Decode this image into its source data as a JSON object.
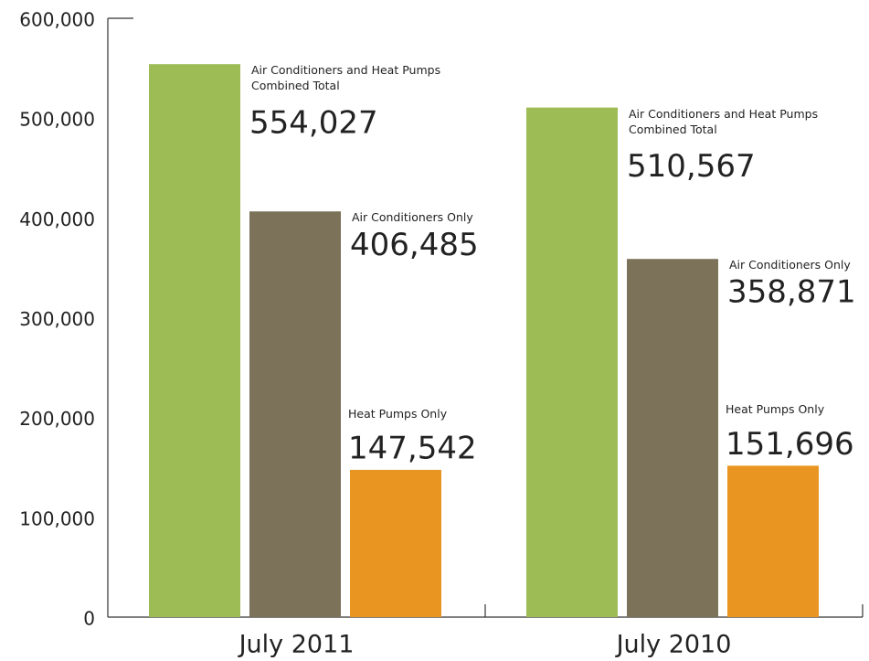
{
  "chart_data": {
    "type": "bar",
    "categories": [
      "July 2011",
      "July 2010"
    ],
    "series": [
      {
        "name": "Air Conditioners and Heat Pumps Combined Total",
        "color": "#9dbc55",
        "values": [
          554027,
          510567
        ],
        "value_labels": [
          "554,027",
          "510,567"
        ]
      },
      {
        "name": "Air Conditioners Only",
        "color": "#7b7259",
        "values": [
          406485,
          358871
        ],
        "value_labels": [
          "406,485",
          "358,871"
        ]
      },
      {
        "name": "Heat Pumps Only",
        "color": "#e89522",
        "values": [
          147542,
          151696
        ],
        "value_labels": [
          "147,542",
          "151,696"
        ]
      }
    ],
    "ylim": [
      0,
      600000
    ],
    "yticks": [
      0,
      {
        "value": 100000,
        "label": "100,000"
      },
      {
        "value": 200000,
        "label": "200,000"
      },
      {
        "value": 300000,
        "label": "300,000"
      },
      {
        "value": 400000,
        "label": "400,000"
      },
      {
        "value": 500000,
        "label": "500,000"
      },
      {
        "value": 600000,
        "label": "600,000"
      }
    ],
    "grid": false
  }
}
